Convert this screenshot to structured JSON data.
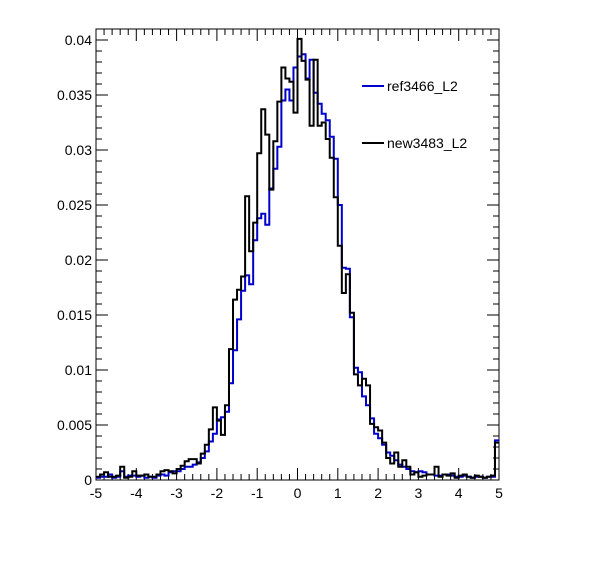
{
  "chart_data": {
    "type": "histogram",
    "title": "",
    "xlabel": "",
    "ylabel": "",
    "xlim": [
      -5,
      5
    ],
    "ylim": [
      0,
      0.041
    ],
    "x_ticks": [
      -5,
      -4,
      -3,
      -2,
      -1,
      0,
      1,
      2,
      3,
      4,
      5
    ],
    "x_tick_labels": [
      "-5",
      "-4",
      "-3",
      "-2",
      "-1",
      "0",
      "1",
      "2",
      "3",
      "4",
      "5"
    ],
    "y_ticks": [
      0,
      0.005,
      0.01,
      0.015,
      0.02,
      0.025,
      0.03,
      0.035,
      0.04
    ],
    "y_tick_labels": [
      "0",
      "0.005",
      "0.01",
      "0.015",
      "0.02",
      "0.025",
      "0.03",
      "0.035",
      "0.04"
    ],
    "grid": false,
    "legend_position": "top-right",
    "bin_width": 0.1,
    "bin_start": -5,
    "series": [
      {
        "name": "ref3466_L2",
        "color": "#0000cc",
        "values": [
          0.0002,
          0.0003,
          0.0003,
          0.0005,
          0.0002,
          0.0003,
          0.0008,
          0.0003,
          0.0004,
          0.0004,
          0.0003,
          0.0004,
          0.0002,
          0.0003,
          0.0002,
          0.0004,
          0.0005,
          0.0004,
          0.0007,
          0.0008,
          0.0008,
          0.001,
          0.0012,
          0.0012,
          0.0014,
          0.0016,
          0.002,
          0.0026,
          0.0035,
          0.0042,
          0.0055,
          0.0057,
          0.0062,
          0.0088,
          0.0118,
          0.0146,
          0.0172,
          0.0186,
          0.0178,
          0.0218,
          0.0238,
          0.0242,
          0.0232,
          0.0265,
          0.0283,
          0.0303,
          0.0345,
          0.0355,
          0.0345,
          0.0375,
          0.0385,
          0.0387,
          0.0365,
          0.0382,
          0.0352,
          0.0342,
          0.0333,
          0.0327,
          0.0312,
          0.0292,
          0.025,
          0.0193,
          0.0192,
          0.0148,
          0.0102,
          0.0098,
          0.0076,
          0.0068,
          0.0056,
          0.0042,
          0.0038,
          0.0032,
          0.0025,
          0.0022,
          0.0018,
          0.0014,
          0.0012,
          0.001,
          0.0008,
          0.0007,
          0.0008,
          0.0007,
          0.0005,
          0.0005,
          0.0004,
          0.0004,
          0.0005,
          0.0005,
          0.0004,
          0.0003,
          0.0003,
          0.0004,
          0.0003,
          0.0002,
          0.0003,
          0.0003,
          0.0002,
          0.0003,
          0.0003,
          0.0036
        ]
      },
      {
        "name": "new3483_L2",
        "color": "#000000",
        "values": [
          0.0003,
          0.0005,
          0.0007,
          0.0003,
          0.0003,
          0.0004,
          0.0012,
          0.0002,
          0.0003,
          0.0008,
          0.0004,
          0.0004,
          0.0005,
          0.0003,
          0.0003,
          0.0005,
          0.0008,
          0.0009,
          0.0008,
          0.0006,
          0.001,
          0.0013,
          0.0017,
          0.0019,
          0.0019,
          0.0015,
          0.0024,
          0.0032,
          0.0046,
          0.0066,
          0.0054,
          0.0041,
          0.0068,
          0.0119,
          0.0164,
          0.0173,
          0.0185,
          0.0258,
          0.0208,
          0.0234,
          0.0297,
          0.0337,
          0.0314,
          0.0264,
          0.0308,
          0.0344,
          0.0375,
          0.0365,
          0.0362,
          0.0334,
          0.0401,
          0.0381,
          0.0364,
          0.0322,
          0.0382,
          0.0322,
          0.0325,
          0.031,
          0.0293,
          0.0257,
          0.0213,
          0.017,
          0.0187,
          0.0152,
          0.0096,
          0.0086,
          0.0092,
          0.0086,
          0.0051,
          0.0048,
          0.0045,
          0.0034,
          0.002,
          0.0015,
          0.0025,
          0.0012,
          0.0018,
          0.0012,
          0.0005,
          0.0007,
          0.0003,
          0.0004,
          0.0005,
          0.0005,
          0.0012,
          0.0003,
          0.0005,
          0.0004,
          0.0006,
          0.0002,
          0.0004,
          0.0005,
          0.0003,
          0.0002,
          0.0004,
          0.0003,
          0.0002,
          0.0003,
          0.0004,
          0.0034
        ]
      }
    ]
  }
}
